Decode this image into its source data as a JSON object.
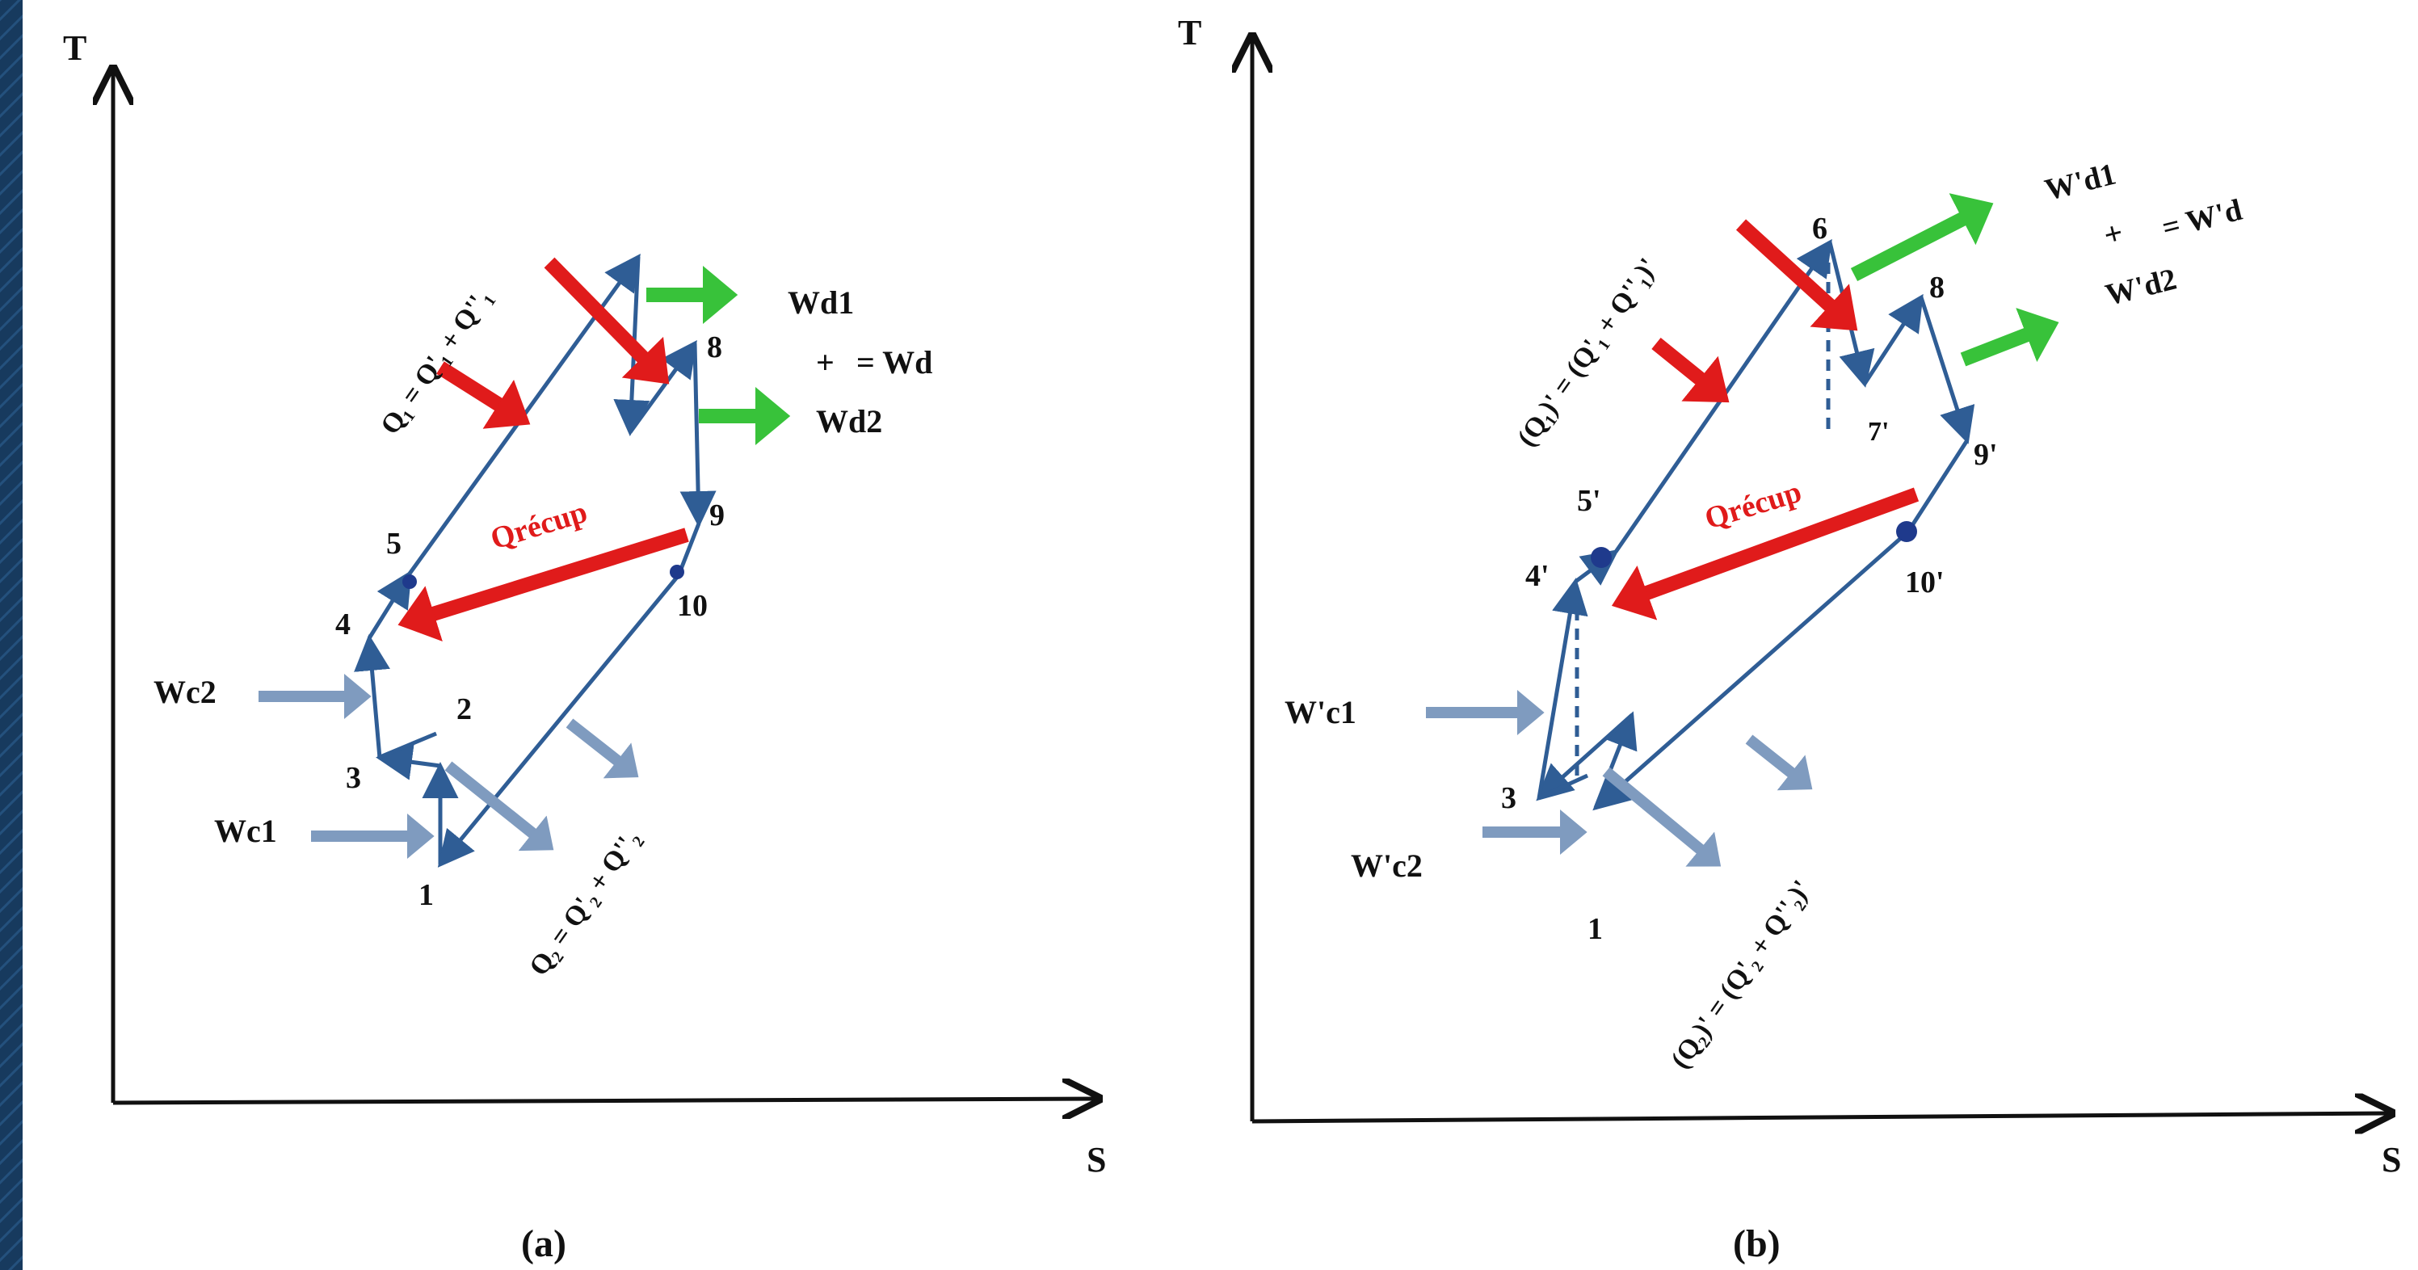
{
  "colors": {
    "backdrop": "#173a5e",
    "backdrop_stripe": "#24517d",
    "cycle": "#2f5d95",
    "heat": "#e01b1b",
    "work_out": "#38c23a",
    "work_in": "#7f9bbf",
    "ink": "#111111",
    "point": "#1f3a8c"
  },
  "panel_a": {
    "caption": "(a)",
    "axis_t": "T",
    "axis_s": "S",
    "points": [
      "1",
      "2",
      "3",
      "4",
      "5",
      "8",
      "9",
      "10"
    ],
    "q1_label": "Q₁ = Q'₁ + Q''₁",
    "q2_label": "Q₂ = Q'₂ + Q''₂",
    "q_recup": "Qrécup",
    "w_d1": "Wd1",
    "plus": "+",
    "w_d": "= Wd",
    "w_d2": "Wd2",
    "w_c2": "Wc2",
    "w_c1": "Wc1"
  },
  "panel_b": {
    "caption": "(b)",
    "axis_t": "T",
    "axis_s": "S",
    "points": [
      "1",
      "3",
      "4'",
      "5'",
      "6",
      "7'",
      "8",
      "9'",
      "10'"
    ],
    "q1_label": "(Q₁)' = (Q'₁ + Q''₁)'",
    "q2_label": "(Q₂)' = (Q'₂ + Q''₂)'",
    "q_recup": "Qrécup",
    "w_d1": "W'd1",
    "plus": "+",
    "w_d": "= W'd",
    "w_d2": "W'd2",
    "w_c1": "W'c1",
    "w_c2": "W'c2"
  }
}
